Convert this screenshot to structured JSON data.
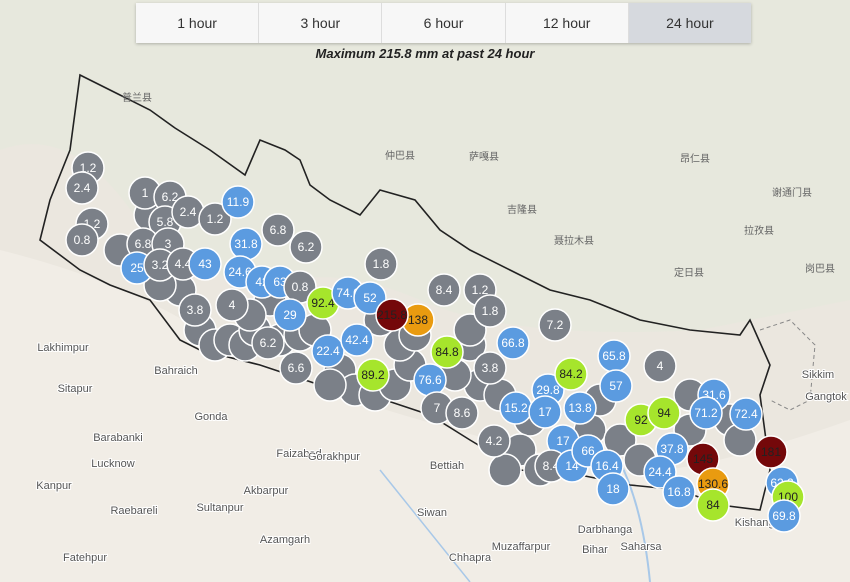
{
  "tabs": [
    "1 hour",
    "3 hour",
    "6 hour",
    "12 hour",
    "24 hour"
  ],
  "active_tab": "24 hour",
  "caption": "Maximum 215.8 mm at past 24 hour",
  "places": [
    "Lakhimpur",
    "Bahraich",
    "Sitapur",
    "Gonda",
    "Barabanki",
    "Faizabad",
    "Gorakhpur",
    "Lucknow",
    "Kanpur",
    "Raebareli",
    "Sultanpur",
    "Akbarpur",
    "Azamgarh",
    "Fatehpur",
    "Bettiah",
    "Siwan",
    "Muzaffarpur",
    "Darbhanga",
    "Chhapra",
    "Bihar",
    "Saharsa",
    "Kishanganj",
    "Sikkim",
    "Gangtok",
    "仲巴县",
    "萨嘎县",
    "吉隆县",
    "聂拉木县",
    "定日县",
    "拉孜县",
    "昂仁县",
    "谢通门县",
    "岗巴县",
    "普兰县"
  ],
  "stations": [
    {
      "value": "1.2"
    },
    {
      "value": "2.4"
    },
    {
      "value": "1.2"
    },
    {
      "value": "0.8"
    },
    {
      "value": "1"
    },
    {
      "value": "6.2"
    },
    {
      "value": "5.8"
    },
    {
      "value": "2.4"
    },
    {
      "value": "1.2"
    },
    {
      "value": "11.9"
    },
    {
      "value": "6.8"
    },
    {
      "value": "3"
    },
    {
      "value": "25"
    },
    {
      "value": "3.2"
    },
    {
      "value": "4.4"
    },
    {
      "value": "43"
    },
    {
      "value": "31.8"
    },
    {
      "value": "6.8"
    },
    {
      "value": "6.2"
    },
    {
      "value": "24.6"
    },
    {
      "value": "42"
    },
    {
      "value": "63"
    },
    {
      "value": "0.8"
    },
    {
      "value": "3.8"
    },
    {
      "value": "4"
    },
    {
      "value": "6.2"
    },
    {
      "value": "6.6"
    },
    {
      "value": "29"
    },
    {
      "value": "22.4"
    },
    {
      "value": "42.4"
    },
    {
      "value": "92.4"
    },
    {
      "value": "74.6"
    },
    {
      "value": "52"
    },
    {
      "value": "1.8"
    },
    {
      "value": "138"
    },
    {
      "value": "215.8"
    },
    {
      "value": "8.4"
    },
    {
      "value": "1.2"
    },
    {
      "value": "1.8"
    },
    {
      "value": "84.8"
    },
    {
      "value": "76.6"
    },
    {
      "value": "89.2"
    },
    {
      "value": "7"
    },
    {
      "value": "8.6"
    },
    {
      "value": "3.8"
    },
    {
      "value": "15.2"
    },
    {
      "value": "66.8"
    },
    {
      "value": "7.2"
    },
    {
      "value": "29.8"
    },
    {
      "value": "17"
    },
    {
      "value": "13.8"
    },
    {
      "value": "84.2"
    },
    {
      "value": "65.8"
    },
    {
      "value": "57"
    },
    {
      "value": "4"
    },
    {
      "value": "4.2"
    },
    {
      "value": "17"
    },
    {
      "value": "8.4"
    },
    {
      "value": "14"
    },
    {
      "value": "66"
    },
    {
      "value": "16.4"
    },
    {
      "value": "18"
    },
    {
      "value": "92"
    },
    {
      "value": "94"
    },
    {
      "value": "31.6"
    },
    {
      "value": "71.2"
    },
    {
      "value": "72.4"
    },
    {
      "value": "37.8"
    },
    {
      "value": "24.4"
    },
    {
      "value": "16.8"
    },
    {
      "value": "145"
    },
    {
      "value": "130.6"
    },
    {
      "value": "181"
    },
    {
      "value": "62.2"
    },
    {
      "value": "100"
    },
    {
      "value": "84"
    },
    {
      "value": "69.8"
    }
  ]
}
